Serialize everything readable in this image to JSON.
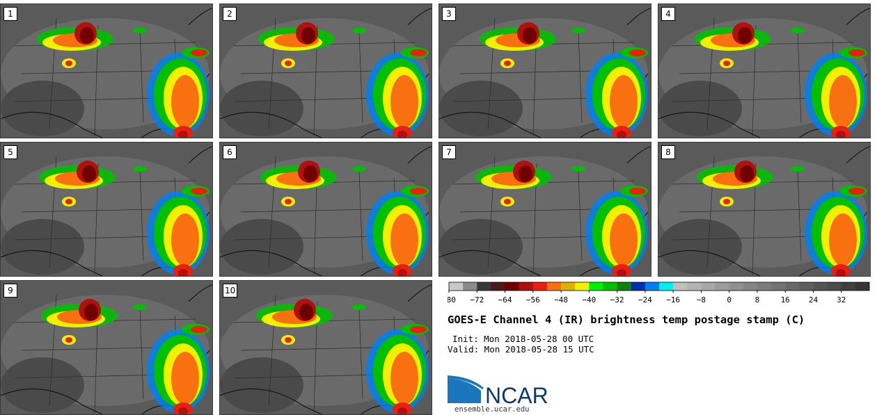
{
  "panels": [
    {
      "label": "1"
    },
    {
      "label": "2"
    },
    {
      "label": "3"
    },
    {
      "label": "4"
    },
    {
      "label": "5"
    },
    {
      "label": "6"
    },
    {
      "label": "7"
    },
    {
      "label": "8"
    },
    {
      "label": "9"
    },
    {
      "label": "10"
    }
  ],
  "colorbar": {
    "ticks": [
      "−80",
      "−72",
      "−64",
      "−56",
      "−48",
      "−40",
      "−32",
      "−24",
      "−16",
      "−8",
      "0",
      "8",
      "16",
      "24",
      "32"
    ],
    "colors": [
      "#c8c8c8",
      "#8c8c8c",
      "#383838",
      "#4a1a1a",
      "#700000",
      "#b01010",
      "#e82010",
      "#f87010",
      "#e0b000",
      "#f0f000",
      "#00f000",
      "#00c000",
      "#108010",
      "#0030b0",
      "#0080f0",
      "#00f0f0",
      "#c0c0c0",
      "#b4b4b4",
      "#a8a8a8",
      "#9c9c9c",
      "#909090",
      "#868686",
      "#7c7c7c",
      "#727272",
      "#686868",
      "#5e5e5e",
      "#545454",
      "#4a4a4a",
      "#404040",
      "#363636"
    ]
  },
  "title": "GOES-E Channel 4 (IR) brightness temp postage stamp (C)",
  "init_text": "Init: Mon 2018-05-28 00 UTC",
  "valid_text": "Valid: Mon 2018-05-28 15 UTC",
  "logo_text": "NCAR",
  "site_text": "ensemble.ucar.edu",
  "chart_data": {
    "type": "heatmap",
    "title": "GOES-E Channel 4 (IR) brightness temp postage stamp (C)",
    "colorbar_range": [
      -80,
      40
    ],
    "colorbar_ticks": [
      -80,
      -72,
      -64,
      -56,
      -48,
      -40,
      -32,
      -24,
      -16,
      -8,
      0,
      8,
      16,
      24,
      32
    ],
    "members": [
      "1",
      "2",
      "3",
      "4",
      "5",
      "6",
      "7",
      "8",
      "9",
      "10"
    ]
  }
}
